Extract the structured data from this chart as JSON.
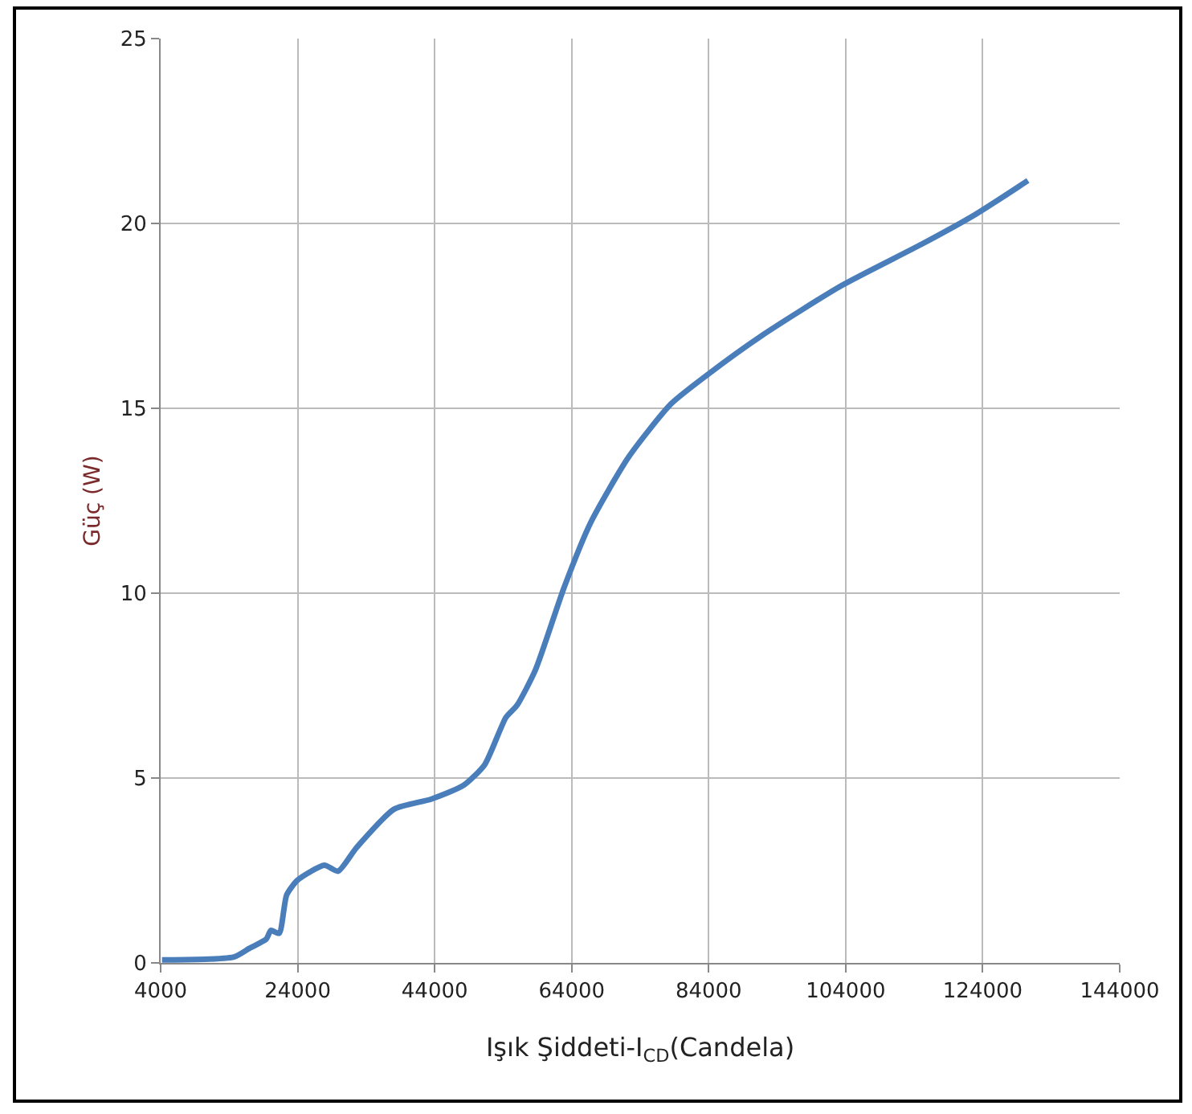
{
  "chart_data": {
    "type": "line",
    "xlabel": "Işık Şiddeti-I$_{CD}$(Candela)",
    "ylabel": "Güç (W)",
    "xlim": [
      4000,
      144000
    ],
    "xticks": [
      4000,
      24000,
      44000,
      64000,
      84000,
      104000,
      124000,
      144000
    ],
    "ylim": [
      0,
      25
    ],
    "yticks": [
      0,
      5,
      10,
      15,
      20,
      25
    ],
    "grid": true,
    "marker": "none",
    "line_style": "solid",
    "series": [
      {
        "color": "#4a7ebb",
        "x": [
          4200,
          14700,
          17000,
          19400,
          20100,
          21300,
          22400,
          24000,
          27900,
          29900,
          32600,
          38100,
          43500,
          48200,
          51300,
          54400,
          56000,
          58700,
          62900,
          66800,
          72300,
          78500,
          83900,
          91700,
          103400,
          115100,
          122900,
          130600
        ],
        "values": [
          0.08,
          0.16,
          0.4,
          0.64,
          0.88,
          0.8,
          1.84,
          2.24,
          2.64,
          2.48,
          3.12,
          4.16,
          4.43,
          4.8,
          5.36,
          6.64,
          6.96,
          7.92,
          10.16,
          11.92,
          13.68,
          15.12,
          15.92,
          16.96,
          18.32,
          19.44,
          20.24,
          21.16
        ]
      }
    ]
  }
}
